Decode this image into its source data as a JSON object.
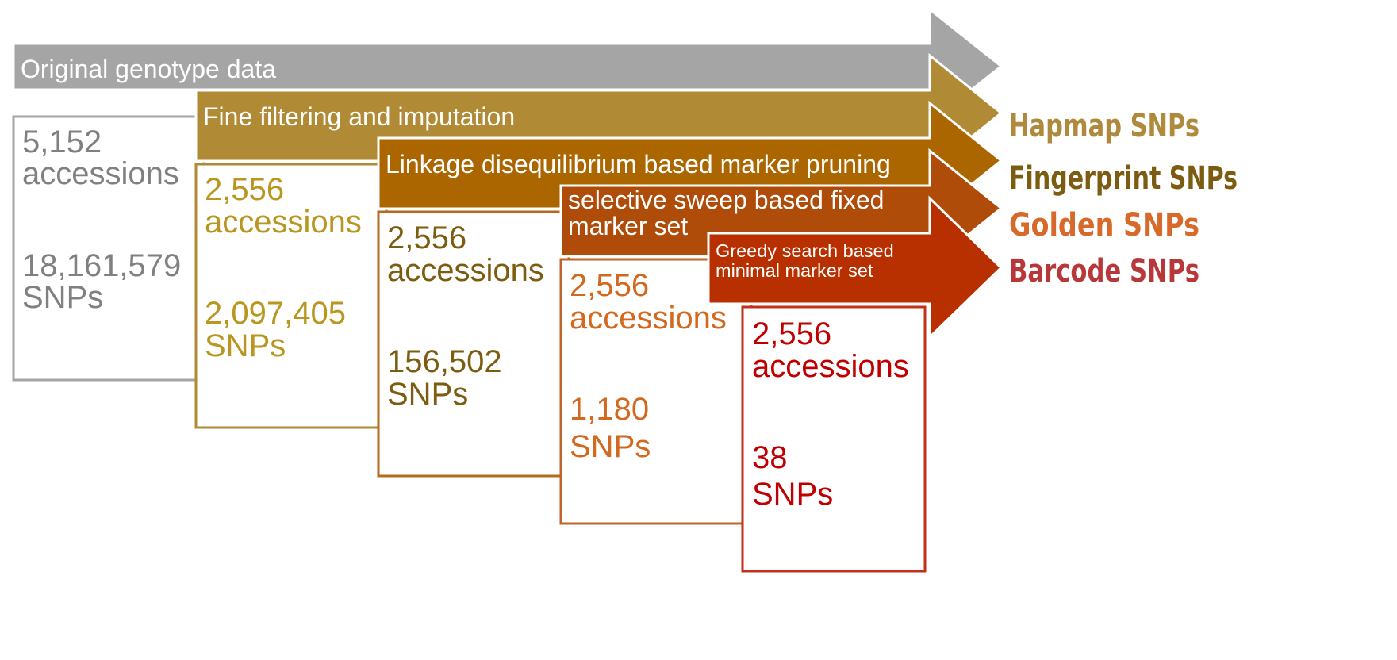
{
  "stages": [
    {
      "label_lines": [
        "Original genotype data"
      ],
      "accessions_value": "5,152",
      "accessions_unit": "accessions",
      "snps_value": "18,161,579",
      "snps_unit": "SNPs",
      "band_color": "#a5a5a5",
      "text_color": "#808080",
      "box_border": "#a5a5a5"
    },
    {
      "label_lines": [
        "Fine filtering and imputation"
      ],
      "accessions_value": "2,556",
      "accessions_unit": "accessions",
      "snps_value": "2,097,405",
      "snps_unit": "SNPs",
      "band_color": "#b08a35",
      "text_color": "#b8961f",
      "box_border": "#b08a35",
      "output": "Hapmap SNPs",
      "output_color": "#b08a3c"
    },
    {
      "label_lines": [
        "Linkage disequilibrium based marker pruning"
      ],
      "accessions_value": "2,556",
      "accessions_unit": "accessions",
      "snps_value": "156,502",
      "snps_unit": "SNPs",
      "band_color": "#ac6600",
      "text_color": "#7c5c10",
      "box_border": "#b36a1f",
      "output": "Fingerprint SNPs",
      "output_color": "#7c5c10"
    },
    {
      "label_lines": [
        "selective sweep based fixed",
        "marker set"
      ],
      "accessions_value": "2,556",
      "accessions_unit": "accessions",
      "snps_value": "1,180",
      "snps_unit": "SNPs",
      "band_color": "#b04c0a",
      "text_color": "#d2691e",
      "box_border": "#c0642a",
      "output": "Golden SNPs",
      "output_color": "#d76a2a"
    },
    {
      "label_lines": [
        "Greedy search based",
        "minimal marker set"
      ],
      "accessions_value": "2,556",
      "accessions_unit": "accessions",
      "snps_value": "38",
      "snps_unit": "SNPs",
      "band_color": "#b83000",
      "text_color": "#c00000",
      "box_border": "#c0301a",
      "output": "Barcode SNPs",
      "output_color": "#b8383a"
    }
  ]
}
